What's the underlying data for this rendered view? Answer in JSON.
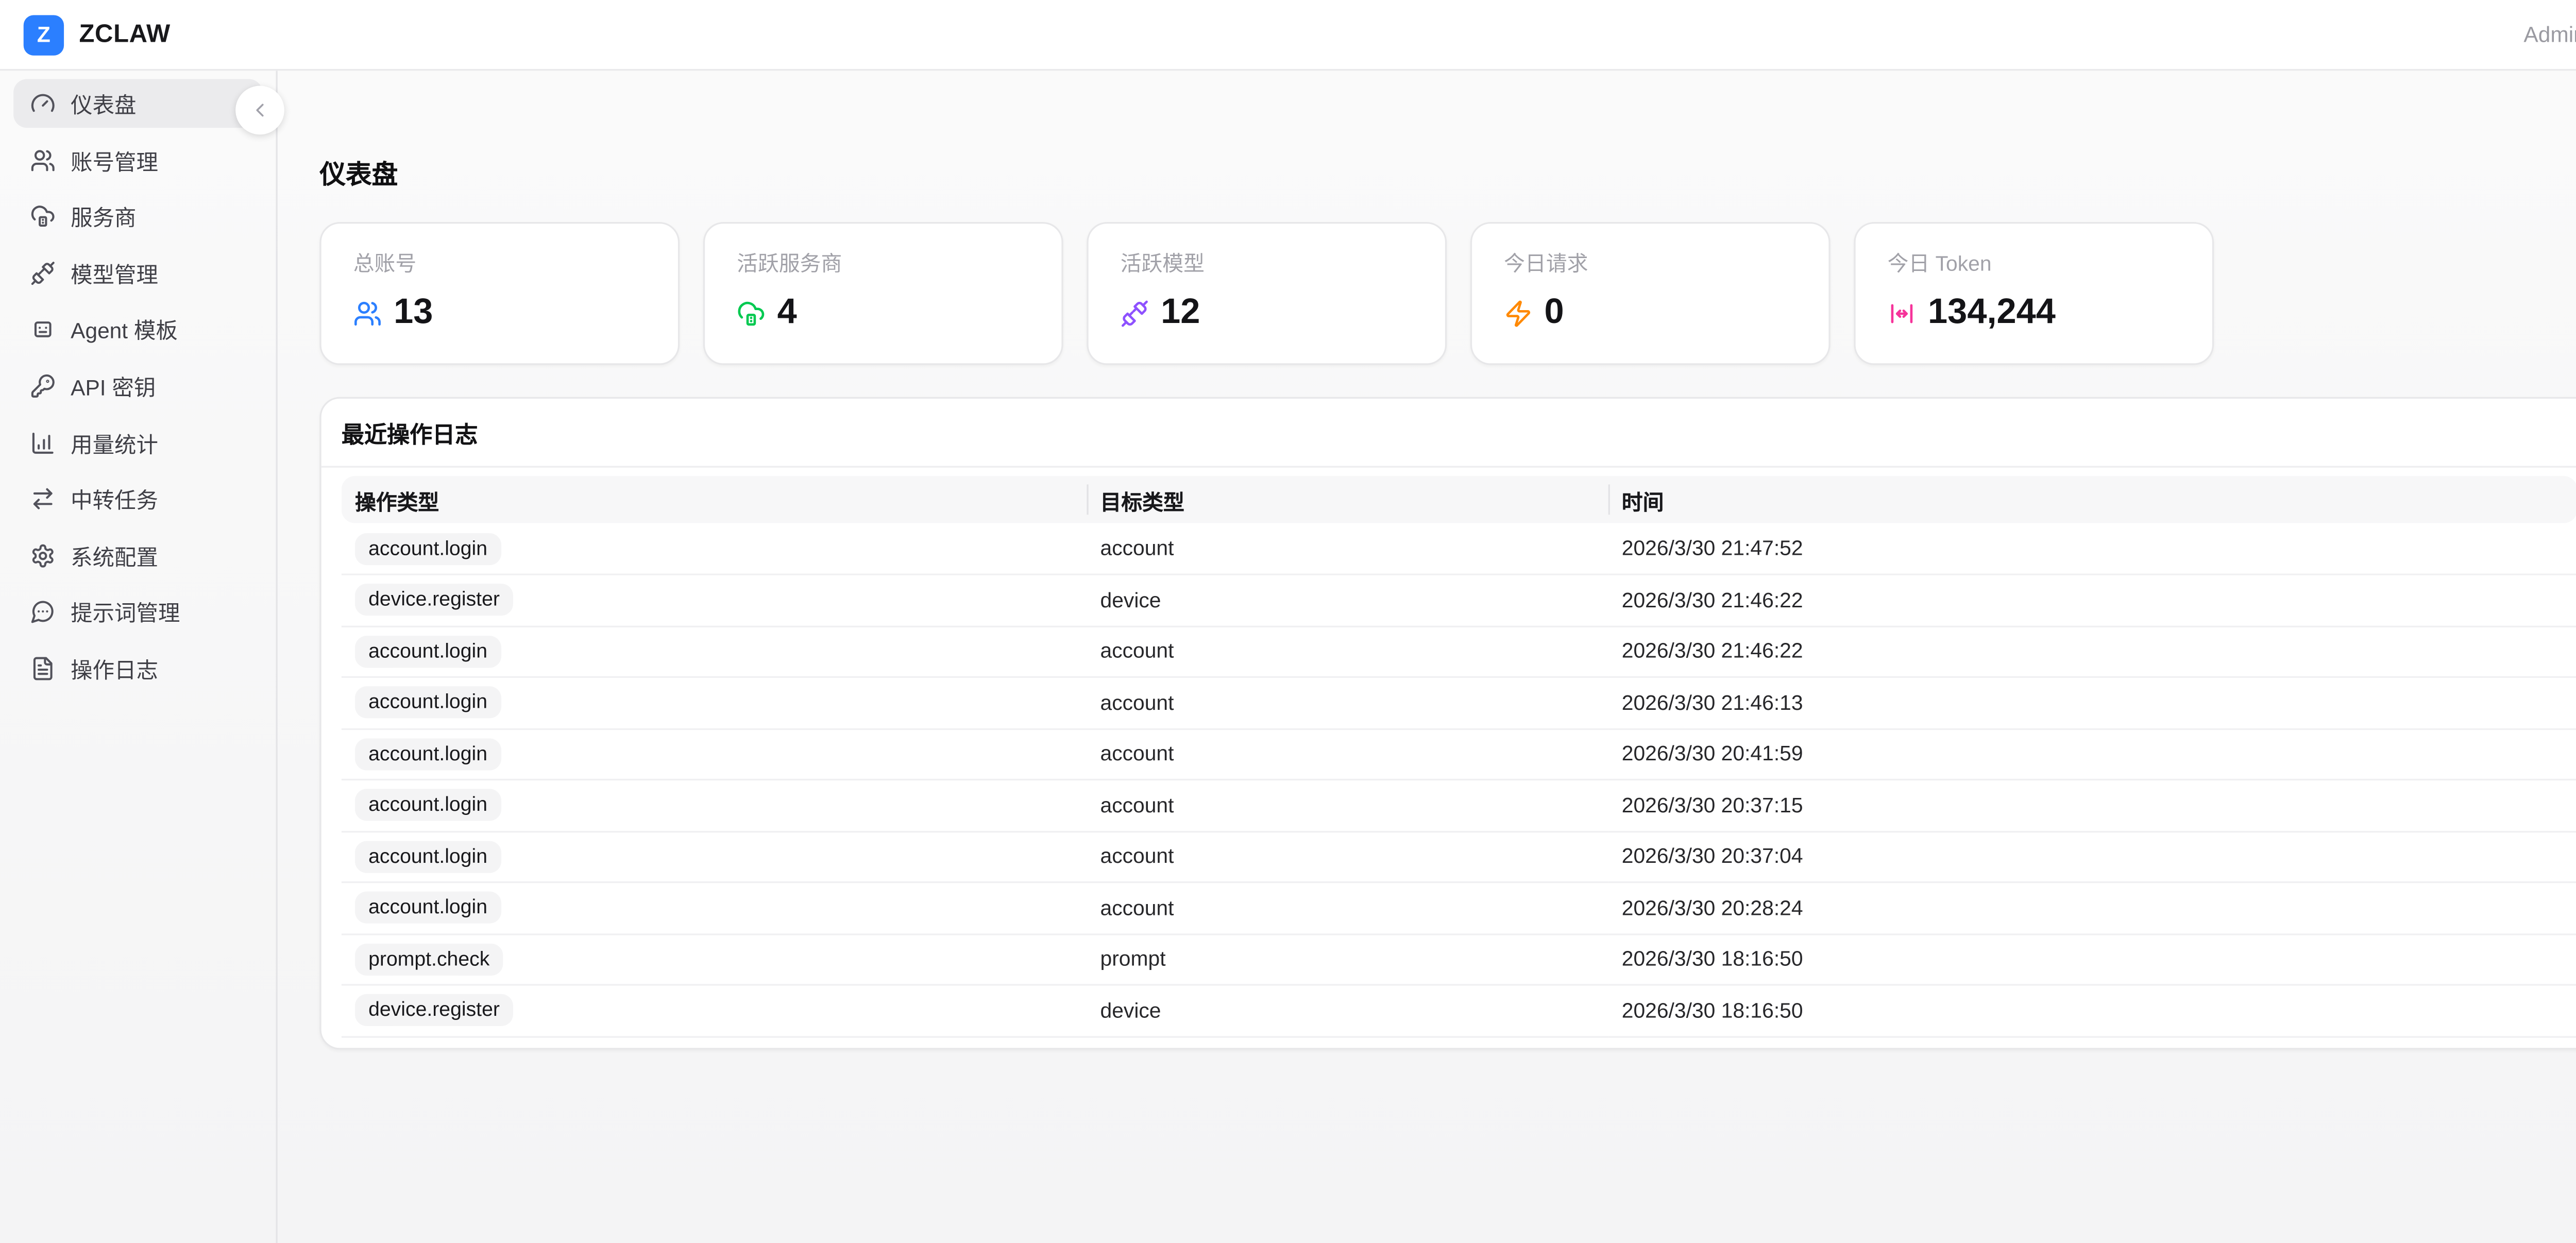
{
  "topbar": {
    "logo_letter": "Z",
    "brand": "ZCLAW",
    "user": "Admin"
  },
  "colors": {
    "logo_bg": "#2b7fff",
    "stat_blue": "#2b7fff",
    "stat_green": "#00c950",
    "stat_purple": "#8e51ff",
    "stat_orange": "#ff8904",
    "stat_pink": "#f6339a"
  },
  "sidebar": {
    "items": [
      {
        "label": "仪表盘",
        "icon": "gauge-icon",
        "active": true
      },
      {
        "label": "账号管理",
        "icon": "users-icon",
        "active": false
      },
      {
        "label": "服务商",
        "icon": "cloud-server-icon",
        "active": false
      },
      {
        "label": "模型管理",
        "icon": "plug-icon",
        "active": false
      },
      {
        "label": "Agent 模板",
        "icon": "robot-icon",
        "active": false
      },
      {
        "label": "API 密钥",
        "icon": "key-icon",
        "active": false
      },
      {
        "label": "用量统计",
        "icon": "bar-chart-icon",
        "active": false
      },
      {
        "label": "中转任务",
        "icon": "arrows-swap-icon",
        "active": false
      },
      {
        "label": "系统配置",
        "icon": "gear-icon",
        "active": false
      },
      {
        "label": "提示词管理",
        "icon": "message-dots-icon",
        "active": false
      },
      {
        "label": "操作日志",
        "icon": "file-text-icon",
        "active": false
      }
    ]
  },
  "page": {
    "title": "仪表盘"
  },
  "stats": [
    {
      "label": "总账号",
      "value": "13",
      "icon": "users-icon",
      "color": "#2b7fff"
    },
    {
      "label": "活跃服务商",
      "value": "4",
      "icon": "cloud-server-icon",
      "color": "#00c950"
    },
    {
      "label": "活跃模型",
      "value": "12",
      "icon": "plug-icon",
      "color": "#8e51ff"
    },
    {
      "label": "今日请求",
      "value": "0",
      "icon": "zap-icon",
      "color": "#ff8904"
    },
    {
      "label": "今日 Token",
      "value": "134,244",
      "icon": "token-width-icon",
      "color": "#f6339a"
    }
  ],
  "logs": {
    "title": "最近操作日志",
    "columns": [
      "操作类型",
      "目标类型",
      "时间"
    ],
    "rows": [
      {
        "action": "account.login",
        "target": "account",
        "time": "2026/3/30 21:47:52"
      },
      {
        "action": "device.register",
        "target": "device",
        "time": "2026/3/30 21:46:22"
      },
      {
        "action": "account.login",
        "target": "account",
        "time": "2026/3/30 21:46:22"
      },
      {
        "action": "account.login",
        "target": "account",
        "time": "2026/3/30 21:46:13"
      },
      {
        "action": "account.login",
        "target": "account",
        "time": "2026/3/30 20:41:59"
      },
      {
        "action": "account.login",
        "target": "account",
        "time": "2026/3/30 20:37:15"
      },
      {
        "action": "account.login",
        "target": "account",
        "time": "2026/3/30 20:37:04"
      },
      {
        "action": "account.login",
        "target": "account",
        "time": "2026/3/30 20:28:24"
      },
      {
        "action": "prompt.check",
        "target": "prompt",
        "time": "2026/3/30 18:16:50"
      },
      {
        "action": "device.register",
        "target": "device",
        "time": "2026/3/30 18:16:50"
      }
    ]
  }
}
